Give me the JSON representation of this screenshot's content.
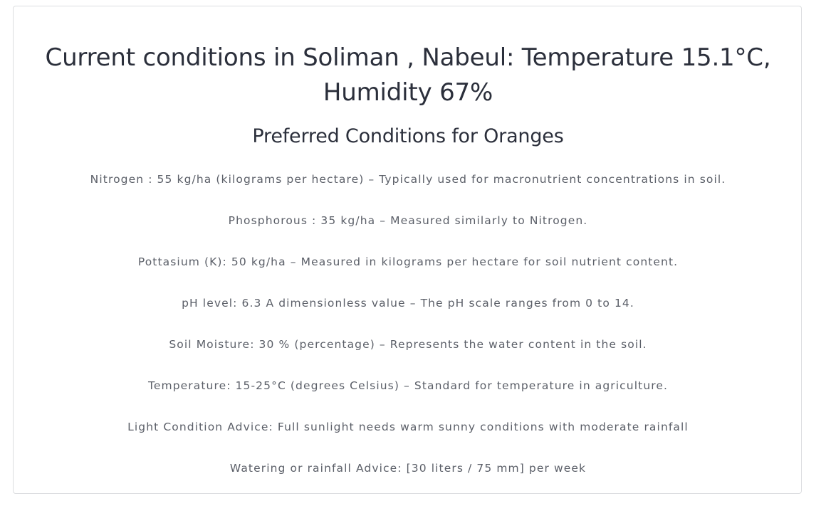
{
  "header": {
    "title": "Current conditions in Soliman , Nabeul: Temperature 15.1°C, Humidity 67%"
  },
  "section": {
    "title": "Preferred Conditions for Oranges"
  },
  "conditions": [
    "Nitrogen : 55 kg/ha (kilograms per hectare) – Typically used for macronutrient concentrations in soil.",
    "Phosphorous : 35 kg/ha – Measured similarly to Nitrogen.",
    "Pottasium (K): 50 kg/ha – Measured in kilograms per hectare for soil nutrient content.",
    "pH level: 6.3 A dimensionless value – The pH scale ranges from 0 to 14.",
    "Soil Moisture: 30 % (percentage) – Represents the water content in the soil.",
    "Temperature: 15-25°C (degrees Celsius) – Standard for temperature in agriculture.",
    "Light Condition Advice: Full sunlight needs warm sunny conditions with moderate rainfall",
    "Watering or rainfall Advice: [30 liters / 75 mm] per week"
  ]
}
